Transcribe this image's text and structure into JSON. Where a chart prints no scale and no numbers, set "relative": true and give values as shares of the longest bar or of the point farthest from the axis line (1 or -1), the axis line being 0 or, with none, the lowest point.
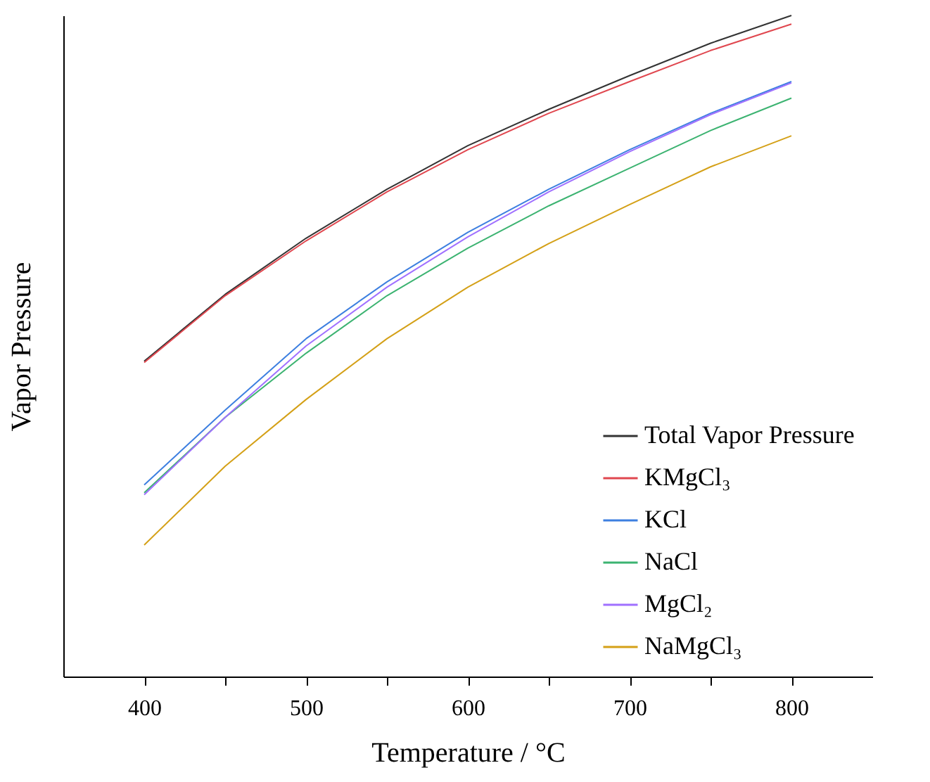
{
  "chart_data": {
    "type": "line",
    "xlabel": "Temperature / °C",
    "ylabel": "Vapor Pressure",
    "relative": true,
    "x": [
      400,
      450,
      500,
      550,
      600,
      650,
      700,
      750,
      800
    ],
    "xlim": [
      350,
      850
    ],
    "xticks": [
      400,
      {
        "value": 450,
        "label": null
      },
      500,
      {
        "value": 550,
        "label": null
      },
      600,
      {
        "value": 650,
        "label": null
      },
      700,
      {
        "value": 750,
        "label": null
      },
      800
    ],
    "series": [
      {
        "name": "Total Vapor Pressure",
        "color": "#333333",
        "values": [
          0.477,
          0.578,
          0.663,
          0.737,
          0.803,
          0.858,
          0.909,
          0.958,
          1
        ]
      },
      {
        "name": "KMgCl₃",
        "color": "#e0474f",
        "values": [
          0.475,
          0.576,
          0.659,
          0.733,
          0.797,
          0.852,
          0.9,
          0.947,
          0.987
        ]
      },
      {
        "name": "KCl",
        "color": "#3d7fe0",
        "values": [
          0.29,
          0.403,
          0.511,
          0.597,
          0.672,
          0.737,
          0.797,
          0.852,
          0.9
        ]
      },
      {
        "name": "NaCl",
        "color": "#3cb371",
        "values": [
          0.278,
          0.392,
          0.489,
          0.576,
          0.648,
          0.712,
          0.769,
          0.826,
          0.875
        ]
      },
      {
        "name": "MgCl₂",
        "color": "#a070ff",
        "values": [
          0.275,
          0.392,
          0.5,
          0.589,
          0.665,
          0.733,
          0.794,
          0.85,
          0.898
        ]
      },
      {
        "name": "NaMgCl₃",
        "color": "#d4a017",
        "values": [
          0.199,
          0.318,
          0.419,
          0.511,
          0.589,
          0.655,
          0.714,
          0.771,
          0.818
        ]
      }
    ],
    "legend": "bottom right",
    "grid": false,
    "marker": "none",
    "line_style": "solid"
  }
}
